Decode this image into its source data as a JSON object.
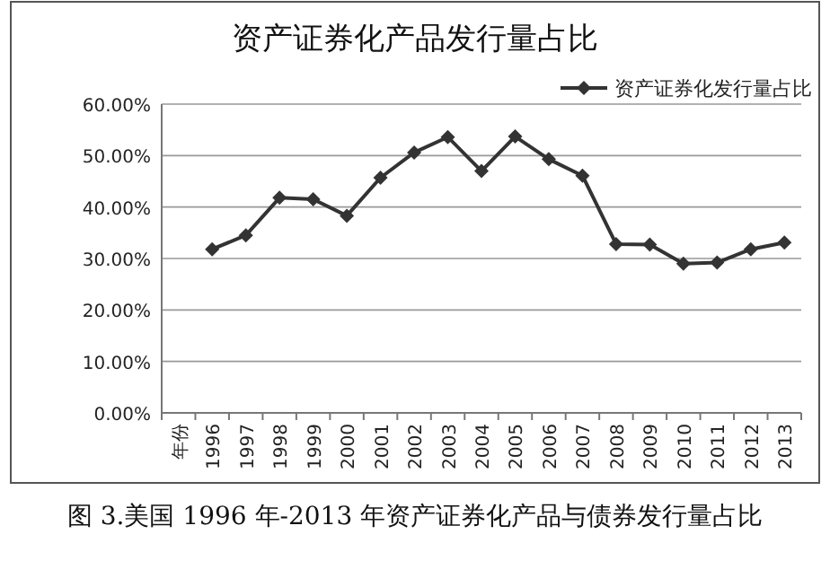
{
  "chart_data": {
    "type": "line",
    "title": "资产证券化产品发行量占比",
    "categories": [
      "年份",
      "1996",
      "1997",
      "1998",
      "1999",
      "2000",
      "2001",
      "2002",
      "2003",
      "2004",
      "2005",
      "2006",
      "2007",
      "2008",
      "2009",
      "2010",
      "2011",
      "2012",
      "2013"
    ],
    "series": [
      {
        "name": "资产证券化发行量占比",
        "color": "#333333",
        "values": [
          null,
          31.8,
          34.5,
          41.8,
          41.5,
          38.3,
          45.7,
          50.6,
          53.6,
          47.0,
          53.7,
          49.3,
          46.1,
          32.8,
          32.7,
          29.0,
          29.2,
          31.8,
          33.1
        ]
      }
    ],
    "ylim": [
      0,
      60
    ],
    "yticks": [
      {
        "value": 0,
        "label": "0.00%"
      },
      {
        "value": 10,
        "label": "10.00%"
      },
      {
        "value": 20,
        "label": "20.00%"
      },
      {
        "value": 30,
        "label": "30.00%"
      },
      {
        "value": 40,
        "label": "40.00%"
      },
      {
        "value": 50,
        "label": "50.00%"
      },
      {
        "value": 60,
        "label": "60.00%"
      }
    ],
    "grid": "y",
    "legend": "top right",
    "marker": "diamond",
    "line_style": "solid",
    "annotations": [
      "图 3.美国 1996 年-2013 年资产证券化产品与债券发行量占比"
    ]
  }
}
